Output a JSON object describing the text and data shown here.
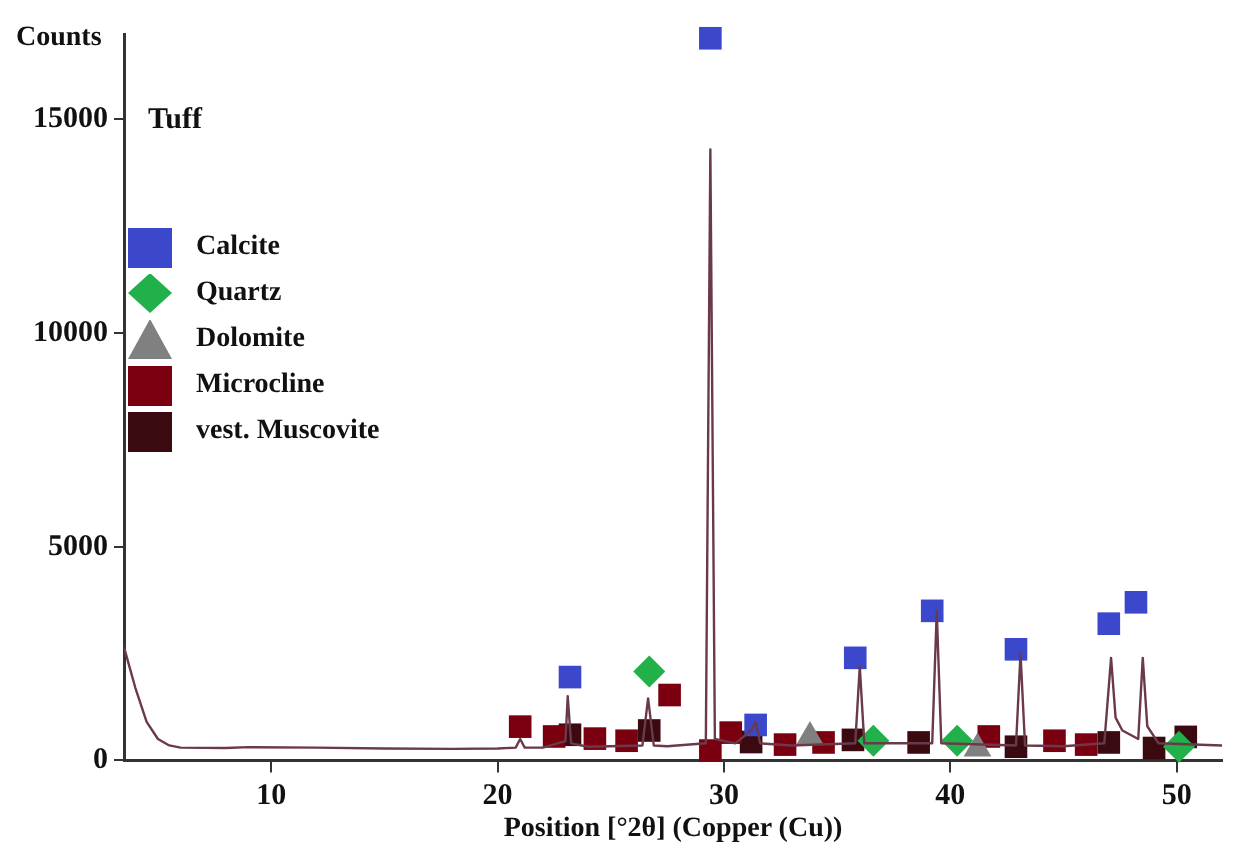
{
  "chart_data": {
    "type": "line",
    "annotations": [
      "Tuff"
    ],
    "xlabel": "Position [°2θ] (Copper (Cu))",
    "ylabel": "Counts",
    "legend": "top left",
    "grid": false,
    "xlim": [
      3.5,
      52
    ],
    "xticks": [
      10,
      20,
      30,
      40,
      50
    ],
    "ylim": [
      0,
      17000
    ],
    "yticks": [
      0,
      5000,
      10000,
      15000
    ],
    "series": [
      {
        "color": "#6b3a4a",
        "marker": "none",
        "x": [
          3.5,
          4,
          4.5,
          5,
          5.5,
          6,
          8,
          9,
          12,
          15,
          18,
          20,
          20.8,
          21,
          21.2,
          22,
          23,
          23.1,
          23.25,
          24,
          26.4,
          26.65,
          26.9,
          27.5,
          29.2,
          29.4,
          29.6,
          30.5,
          31.2,
          31.4,
          31.6,
          33,
          35.8,
          36,
          36.2,
          39.2,
          39.4,
          39.6,
          42.9,
          43.1,
          43.3,
          45,
          46.8,
          47.1,
          47.3,
          47.6,
          48.3,
          48.5,
          48.7,
          49.2,
          52
        ],
        "values": [
          2650,
          1700,
          900,
          500,
          350,
          300,
          290,
          310,
          300,
          280,
          270,
          280,
          300,
          500,
          300,
          300,
          450,
          1500,
          400,
          320,
          350,
          1450,
          350,
          330,
          400,
          14300,
          500,
          400,
          700,
          900,
          400,
          350,
          400,
          2200,
          400,
          400,
          3500,
          400,
          350,
          2500,
          350,
          330,
          400,
          2400,
          1000,
          700,
          500,
          2400,
          800,
          400,
          350
        ]
      },
      {
        "type": "scatter",
        "name": "Calcite",
        "color": "#3b48cc",
        "marker": "square",
        "x": [
          23.2,
          29.4,
          31.4,
          35.8,
          39.2,
          42.9,
          47.0,
          48.2
        ],
        "values": [
          1950,
          16900,
          830,
          2400,
          3500,
          2600,
          3200,
          3700
        ]
      },
      {
        "type": "scatter",
        "name": "Quartz",
        "color": "#22b04a",
        "marker": "diamond",
        "x": [
          26.7,
          36.6,
          40.3,
          50.1
        ],
        "values": [
          2080,
          460,
          460,
          320
        ]
      },
      {
        "type": "scatter",
        "name": "Dolomite",
        "color": "#808080",
        "marker": "triangle",
        "x": [
          33.8,
          41.2
        ],
        "values": [
          550,
          280
        ]
      },
      {
        "type": "scatter",
        "name": "Microcline",
        "color": "#7a0010",
        "marker": "square",
        "x": [
          21.0,
          22.5,
          24.3,
          25.7,
          27.6,
          29.4,
          30.3,
          32.7,
          34.4,
          41.7,
          44.6,
          46.0
        ],
        "values": [
          790,
          560,
          510,
          460,
          1530,
          230,
          650,
          370,
          420,
          560,
          460,
          370
        ]
      },
      {
        "type": "scatter",
        "name": "vest. Muscovite",
        "color": "#3a0a10",
        "marker": "square",
        "x": [
          23.2,
          26.7,
          31.2,
          35.7,
          38.6,
          42.9,
          47.0,
          49.0,
          50.4
        ],
        "values": [
          600,
          700,
          430,
          480,
          420,
          320,
          420,
          290,
          550
        ]
      }
    ]
  }
}
